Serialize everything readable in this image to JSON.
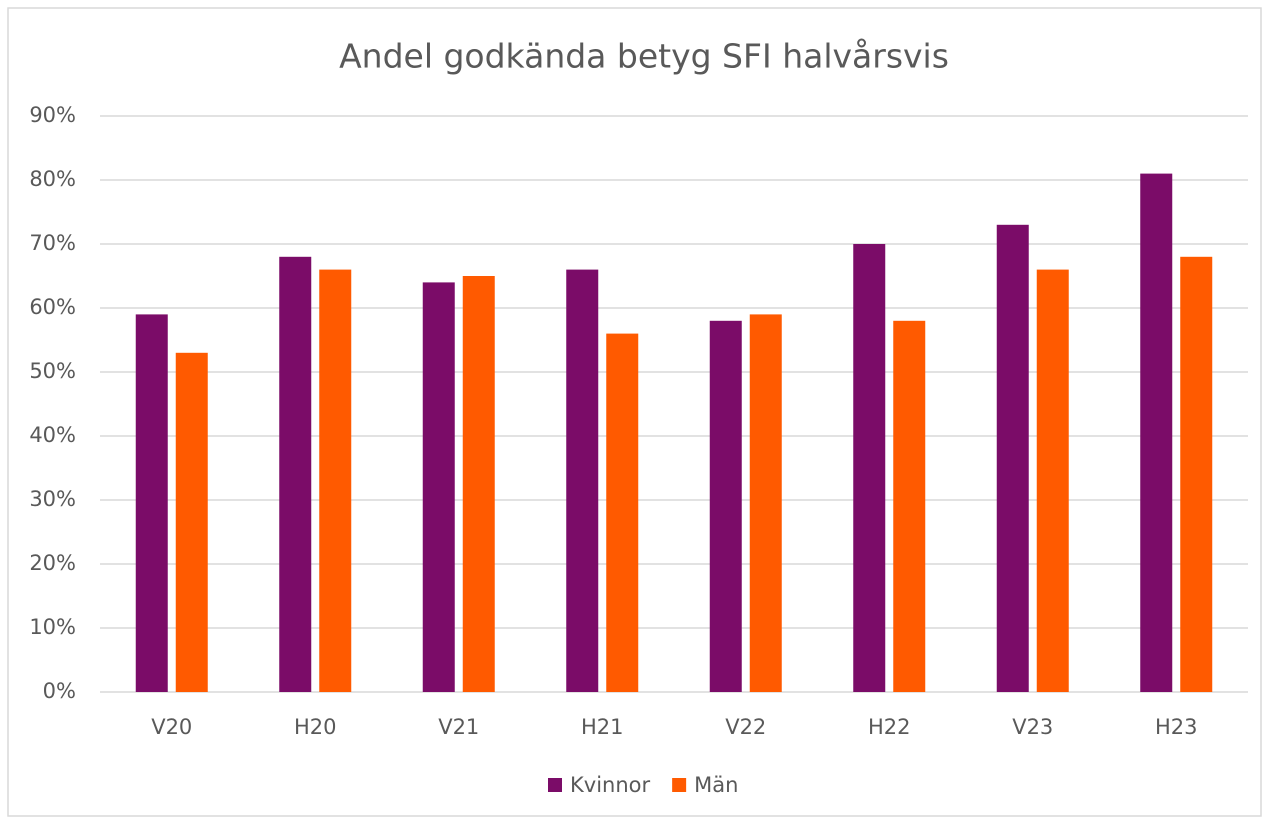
{
  "chart_data": {
    "type": "bar",
    "title": "Andel godkända betyg SFI halvårsvis",
    "categories": [
      "V20",
      "H20",
      "V21",
      "H21",
      "V22",
      "H22",
      "V23",
      "H23"
    ],
    "series": [
      {
        "name": "Kvinnor",
        "color": "#7b0c68",
        "values": [
          59,
          68,
          64,
          66,
          58,
          70,
          73,
          81
        ]
      },
      {
        "name": "Män",
        "color": "#ff5a00",
        "values": [
          53,
          66,
          65,
          56,
          59,
          58,
          66,
          68
        ]
      }
    ],
    "ylim": [
      0,
      90
    ],
    "yticks": [
      {
        "value": 0,
        "label": "0%"
      },
      {
        "value": 10,
        "label": "10%"
      },
      {
        "value": 20,
        "label": "20%"
      },
      {
        "value": 30,
        "label": "30%"
      },
      {
        "value": 40,
        "label": "40%"
      },
      {
        "value": 50,
        "label": "50%"
      },
      {
        "value": 60,
        "label": "60%"
      },
      {
        "value": 70,
        "label": "70%"
      },
      {
        "value": 80,
        "label": "80%"
      },
      {
        "value": 90,
        "label": "90%"
      }
    ],
    "grid": true,
    "legend": "bottom"
  }
}
